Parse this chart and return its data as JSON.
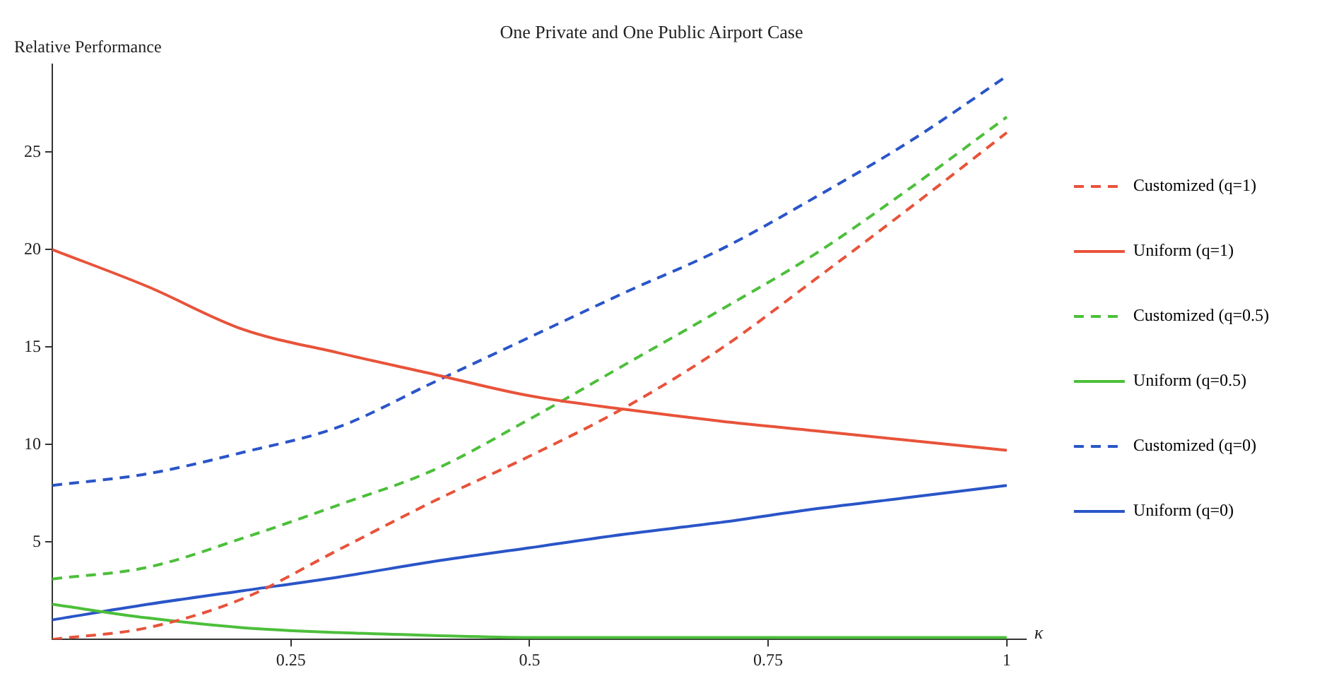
{
  "chart_data": {
    "type": "line",
    "title": "One Private and One Public Airport Case",
    "ylabel": "Relative Performance",
    "xlabel": "κ",
    "x": [
      0,
      0.1,
      0.2,
      0.3,
      0.4,
      0.5,
      0.6,
      0.7,
      0.8,
      0.9,
      1
    ],
    "series": [
      {
        "name": "Customized (q=1)",
        "color": "#e8533a",
        "line_style": "dashed",
        "values": [
          0,
          0.6,
          2.1,
          4.6,
          7.1,
          9.4,
          11.9,
          14.9,
          18.5,
          22.2,
          26.0
        ]
      },
      {
        "name": "Uniform (q=1)",
        "color": "#e8533a",
        "line_style": "solid",
        "values": [
          20,
          18.1,
          15.9,
          14.7,
          13.6,
          12.5,
          11.8,
          11.2,
          10.7,
          10.2,
          9.7
        ]
      },
      {
        "name": "Customized (q=0.5)",
        "color": "#4cbf3a",
        "line_style": "dashed",
        "values": [
          3.1,
          3.7,
          5.2,
          6.9,
          8.7,
          11.3,
          14.1,
          16.9,
          19.8,
          23.2,
          26.8
        ]
      },
      {
        "name": "Uniform (q=0.5)",
        "color": "#4cbf3a",
        "line_style": "solid",
        "values": [
          1.8,
          1.1,
          0.6,
          0.35,
          0.2,
          0.1,
          0.1,
          0.1,
          0.1,
          0.1,
          0.1
        ]
      },
      {
        "name": "Customized (q=0)",
        "color": "#2a55c8",
        "line_style": "dashed",
        "values": [
          7.9,
          8.5,
          9.6,
          10.9,
          13.2,
          15.5,
          17.8,
          20.0,
          22.7,
          25.6,
          28.9
        ]
      },
      {
        "name": "Uniform (q=0)",
        "color": "#2a55c8",
        "line_style": "solid",
        "values": [
          1.0,
          1.8,
          2.5,
          3.2,
          4.0,
          4.7,
          5.4,
          6.0,
          6.7,
          7.3,
          7.9
        ]
      }
    ],
    "xlim": [
      0,
      1.02
    ],
    "xticks": [
      0.25,
      0.5,
      0.75,
      1
    ],
    "ylim": [
      0,
      29.5
    ],
    "yticks": [
      5,
      10,
      15,
      20,
      25
    ],
    "grid": false,
    "legend": "right",
    "marker": "none"
  }
}
